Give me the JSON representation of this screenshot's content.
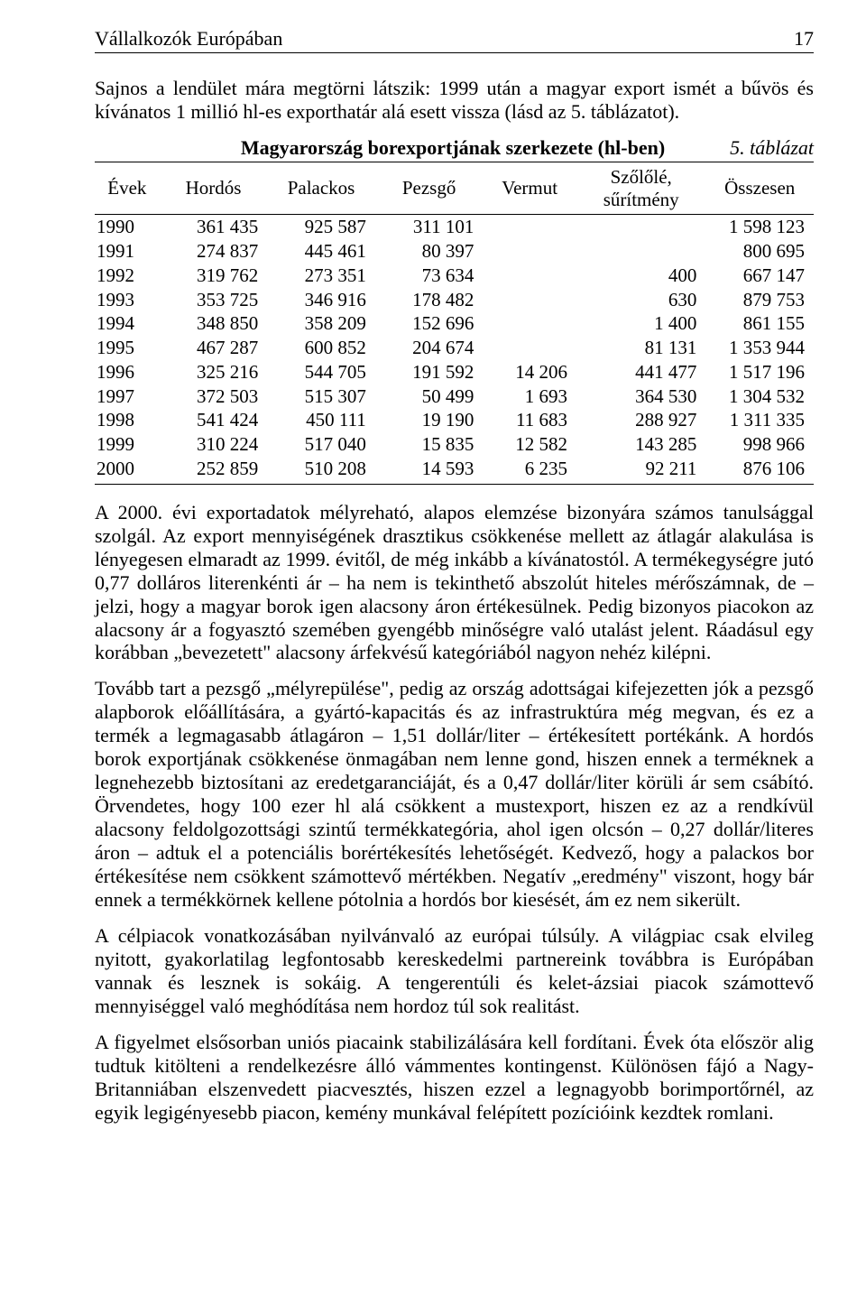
{
  "runhead": {
    "title": "Vállalkozók Európában",
    "page": "17"
  },
  "intro": "Sajnos a lendület mára megtörni látszik: 1999 után a magyar export ismét a bűvös és kívánatos 1 millió hl-es exporthatár alá esett vissza (lásd az 5. táblázatot).",
  "table": {
    "caption": "Magyarország borexportjának szerkezete (hl-ben)",
    "tabnum": "5. táblázat",
    "columns": [
      "Évek",
      "Hordós",
      "Palackos",
      "Pezsgő",
      "Vermut",
      "Szőlőlé, sűrítmény",
      "Összesen"
    ],
    "rows": [
      [
        "1990",
        "361 435",
        "925 587",
        "311 101",
        "",
        "",
        "1 598 123"
      ],
      [
        "1991",
        "274 837",
        "445 461",
        "80 397",
        "",
        "",
        "800 695"
      ],
      [
        "1992",
        "319 762",
        "273 351",
        "73 634",
        "",
        "400",
        "667 147"
      ],
      [
        "1993",
        "353 725",
        "346 916",
        "178 482",
        "",
        "630",
        "879 753"
      ],
      [
        "1994",
        "348 850",
        "358 209",
        "152 696",
        "",
        "1 400",
        "861 155"
      ],
      [
        "1995",
        "467 287",
        "600 852",
        "204 674",
        "",
        "81 131",
        "1 353 944"
      ],
      [
        "1996",
        "325 216",
        "544 705",
        "191 592",
        "14 206",
        "441 477",
        "1 517 196"
      ],
      [
        "1997",
        "372 503",
        "515 307",
        "50 499",
        "1 693",
        "364 530",
        "1 304 532"
      ],
      [
        "1998",
        "541 424",
        "450 111",
        "19 190",
        "11 683",
        "288 927",
        "1 311 335"
      ],
      [
        "1999",
        "310 224",
        "517 040",
        "15 835",
        "12 582",
        "143 285",
        "998 966"
      ],
      [
        "2000",
        "252 859",
        "510 208",
        "14 593",
        "6 235",
        "92 211",
        "876 106"
      ]
    ]
  },
  "paras": {
    "p1": "A 2000. évi exportadatok mélyreható, alapos elemzése bizonyára számos tanulsággal szolgál. Az export mennyiségének drasztikus csökkenése mellett az átlagár alakulása is lényegesen elmaradt az 1999. évitől, de még inkább a kívánatostól. A termékegységre jutó 0,77 dolláros literenkénti ár – ha nem is tekinthető abszolút hiteles mérőszámnak, de – jelzi, hogy a magyar borok igen alacsony áron értékesülnek. Pedig bizonyos piacokon az alacsony ár a fogyasztó szemében gyengébb minőségre való utalást jelent. Ráadásul egy korábban „bevezetett\" alacsony árfekvésű kategóriából nagyon nehéz kilépni.",
    "p2": "Tovább tart a pezsgő „mélyrepülése\", pedig az ország adottságai kifejezetten jók a pezsgő alapborok előállítására, a gyártó-kapacitás és az infrastruktúra még megvan, és ez a termék a legmagasabb átlagáron – 1,51 dollár/liter – értékesített portékánk. A hordós borok exportjának csökkenése önmagában nem lenne gond, hiszen ennek a terméknek a legnehezebb biztosítani az eredetgaranciáját, és a 0,47 dollár/liter körüli ár sem csábító. Örvendetes, hogy 100 ezer hl alá csökkent a mustexport, hiszen ez az a rendkívül alacsony feldolgozottsági szintű termékkategória, ahol igen olcsón – 0,27 dollár/literes áron – adtuk el a potenciális borértékesítés lehetőségét. Kedvező, hogy a palackos bor értékesítése nem csökkent számottevő mértékben. Negatív „eredmény\" viszont, hogy bár ennek a termékkörnek kellene pótolnia a hordós bor kiesését, ám ez nem sikerült.",
    "p3": "A célpiacok vonatkozásában nyilvánvaló az európai túlsúly. A világpiac csak elvileg nyitott, gyakorlatilag legfontosabb kereskedelmi partnereink továbbra is Európában vannak és lesznek is sokáig. A tengerentúli és kelet-ázsiai piacok számottevő mennyiséggel való meghódítása nem hordoz túl sok realitást.",
    "p4": "A figyelmet elsősorban uniós piacaink stabilizálására kell fordítani. Évek óta először alig tudtuk kitölteni a rendelkezésre álló vámmentes kontingenst. Különösen fájó a Nagy-Britanniában elszenvedett piacvesztés, hiszen ezzel a legnagyobb borimportőrnél, az egyik legigényesebb piacon, kemény munkával felépített pozícióink kezdtek romlani."
  }
}
